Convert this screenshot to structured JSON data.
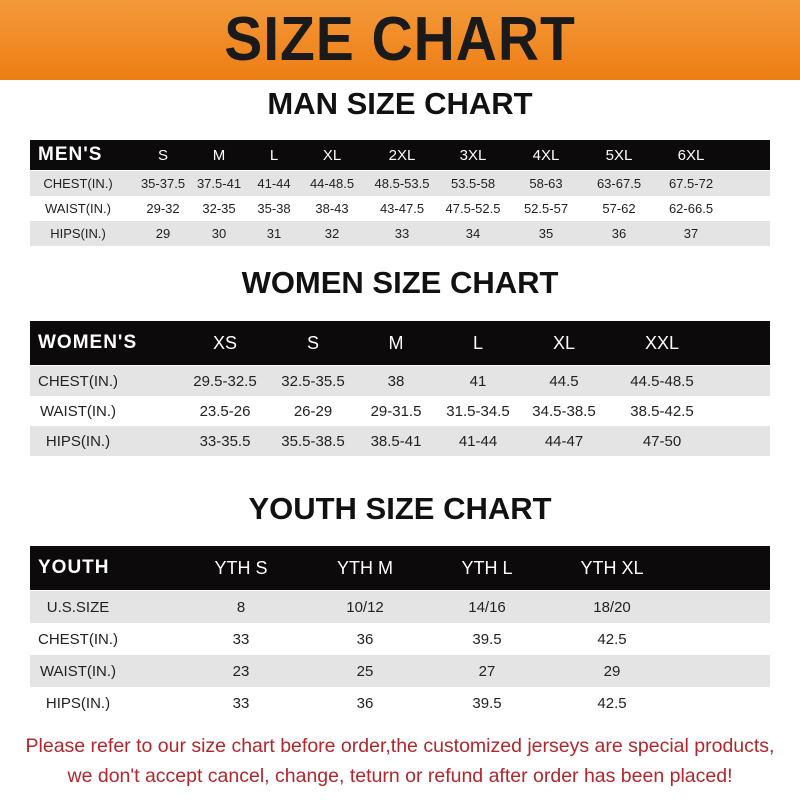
{
  "banner": {
    "title": "SIZE CHART",
    "color": "#ef8420"
  },
  "men": {
    "title": "MAN SIZE CHART",
    "header": [
      "MEN'S",
      "S",
      "M",
      "L",
      "XL",
      "2XL",
      "3XL",
      "4XL",
      "5XL",
      "6XL"
    ],
    "rows": [
      [
        "CHEST(IN.)",
        "35-37.5",
        "37.5-41",
        "41-44",
        "44-48.5",
        "48.5-53.5",
        "53.5-58",
        "58-63",
        "63-67.5",
        "67.5-72"
      ],
      [
        "WAIST(IN.)",
        "29-32",
        "32-35",
        "35-38",
        "38-43",
        "43-47.5",
        "47.5-52.5",
        "52.5-57",
        "57-62",
        "62-66.5"
      ],
      [
        "HIPS(IN.)",
        "29",
        "30",
        "31",
        "32",
        "33",
        "34",
        "35",
        "36",
        "37"
      ]
    ]
  },
  "women": {
    "title": "WOMEN SIZE CHART",
    "header": [
      "WOMEN'S",
      "XS",
      "S",
      "M",
      "L",
      "XL",
      "XXL"
    ],
    "rows": [
      [
        "CHEST(IN.)",
        "29.5-32.5",
        "32.5-35.5",
        "38",
        "41",
        "44.5",
        "44.5-48.5"
      ],
      [
        "WAIST(IN.)",
        "23.5-26",
        "26-29",
        "29-31.5",
        "31.5-34.5",
        "34.5-38.5",
        "38.5-42.5"
      ],
      [
        "HIPS(IN.)",
        "33-35.5",
        "35.5-38.5",
        "38.5-41",
        "41-44",
        "44-47",
        "47-50"
      ]
    ]
  },
  "youth": {
    "title": "YOUTH SIZE CHART",
    "header": [
      "YOUTH",
      "YTH S",
      "YTH M",
      "YTH L",
      "YTH XL"
    ],
    "rows": [
      [
        "U.S.SIZE",
        "8",
        "10/12",
        "14/16",
        "18/20"
      ],
      [
        "CHEST(IN.)",
        "33",
        "36",
        "39.5",
        "42.5"
      ],
      [
        "WAIST(IN.)",
        "23",
        "25",
        "27",
        "29"
      ],
      [
        "HIPS(IN.)",
        "33",
        "36",
        "39.5",
        "42.5"
      ]
    ]
  },
  "notice": {
    "line1": "Please refer to our size chart before order,the customized jerseys are special products,",
    "line2": "we don't accept cancel, change, teturn or refund after order has been placed!",
    "color": "#b3262b"
  }
}
